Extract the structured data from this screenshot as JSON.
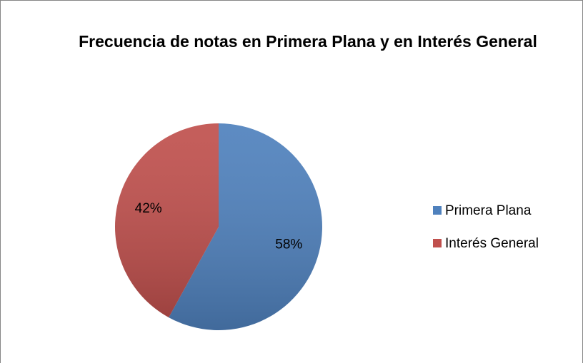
{
  "chart_data": {
    "type": "pie",
    "title": "Frecuencia de notas en Primera Plana y en Interés General",
    "categories": [
      "Primera Plana",
      "Interés General"
    ],
    "values": [
      58,
      42
    ],
    "value_labels": [
      "58%",
      "42%"
    ],
    "colors": [
      "#4f81bd",
      "#c0504d"
    ],
    "legend": "right"
  }
}
